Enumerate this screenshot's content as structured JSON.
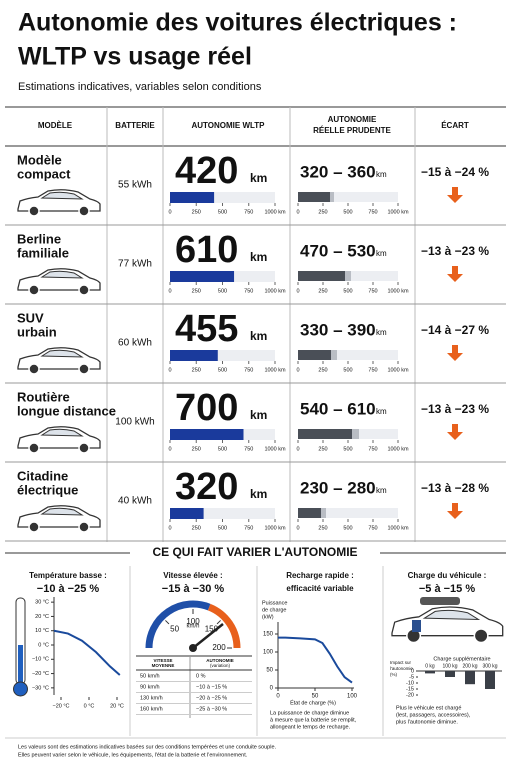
{
  "header": {
    "title": [
      "Autonomie des voitures électriques :",
      "WLTP vs usage réel"
    ],
    "subtitle": "Estimations indicatives, variables selon conditions"
  },
  "table": {
    "columns": [
      "MODÈLE",
      "BATTERIE",
      "AUTONOMIE WLTP",
      [
        "AUTONOMIE",
        "RÉELLE PRUDENTE"
      ],
      "ÉCART"
    ],
    "unit": "km",
    "axis": {
      "lim": [
        0,
        1000
      ],
      "ticks": [
        0,
        250,
        500,
        750,
        {
          "value": 1000,
          "label": "1000 km"
        }
      ]
    },
    "rows": [
      {
        "model": [
          "Modèle",
          "compact"
        ],
        "battery": "55 kWh",
        "wltp": 420,
        "real": "320 – 360",
        "real_min": 320,
        "real_max": 360,
        "gap": "−15 à −24 %"
      },
      {
        "model": [
          "Berline",
          "familiale"
        ],
        "battery": "77 kWh",
        "wltp": 610,
        "real": "470 – 530",
        "real_min": 470,
        "real_max": 530,
        "gap": "−13 à −23 %"
      },
      {
        "model": [
          "SUV",
          "urbain"
        ],
        "battery": "60 kWh",
        "wltp": 455,
        "real": "330 – 390",
        "real_min": 330,
        "real_max": 390,
        "gap": "−14 à −27 %"
      },
      {
        "model": [
          "Routière",
          "longue distance"
        ],
        "battery": "100 kWh",
        "wltp": 700,
        "real": "540 – 610",
        "real_min": 540,
        "real_max": 610,
        "gap": "−13 à −23 %"
      },
      {
        "model": [
          "Citadine",
          "électrique"
        ],
        "battery": "40 kWh",
        "wltp": 320,
        "real": "230 – 280",
        "real_min": 230,
        "real_max": 280,
        "gap": "−13 à −28 %"
      }
    ]
  },
  "factors": {
    "title": "CE QUI FAIT VARIER L'AUTONOMIE",
    "temperature": {
      "title": "Température basse :",
      "value": "−10 à −25 %",
      "ylim": [
        -35,
        35
      ],
      "yticks": [
        {
          "value": 30,
          "label": "30 °C"
        },
        {
          "value": 20,
          "label": "20 °C"
        },
        {
          "value": 10,
          "label": "10 °C"
        },
        {
          "value": 0,
          "label": "0 °C"
        },
        {
          "value": -10,
          "label": "−10 °C"
        },
        {
          "value": -20,
          "label": "−20 °C"
        },
        {
          "value": -30,
          "label": "−30 °C"
        }
      ],
      "xlim": [
        -25,
        25
      ],
      "xticks": [
        {
          "value": -20,
          "label": "−20 °C"
        },
        {
          "value": 0,
          "label": "0 °C"
        },
        {
          "value": 20,
          "label": "20 °C"
        }
      ],
      "x": [
        -25,
        -15,
        -5,
        5,
        15,
        22
      ],
      "values": [
        10,
        8,
        3,
        -5,
        -15,
        -21
      ],
      "color": "#1a4a9c"
    },
    "speed": {
      "title": "Vitesse élevée :",
      "value": "−15 à −30 %",
      "gauge": {
        "lim": [
          0,
          200
        ],
        "ticks": [
          50,
          100,
          150,
          200
        ],
        "unit": "km/h"
      },
      "columns": [
        "VITESSE",
        "MOYENNE",
        "AUTONOMIE",
        "(variation)"
      ],
      "rows": [
        [
          "50 km/h",
          "0 %"
        ],
        [
          "90 km/h",
          "−10 à −15 %"
        ],
        [
          "130 km/h",
          "−20 à −25 %"
        ],
        [
          "160 km/h",
          "−25 à −30 %"
        ]
      ]
    },
    "charging": {
      "title": "Recharge rapide :",
      "value": "efficacité variable",
      "ylabel": [
        "Puissance",
        "de charge",
        "(kW)"
      ],
      "xlabel": "État de charge (%)",
      "ylim": [
        0,
        175
      ],
      "yticks": [
        0,
        50,
        100,
        150
      ],
      "xlim": [
        0,
        100
      ],
      "xticks": [
        0,
        50,
        100
      ],
      "x": [
        0,
        10,
        30,
        50,
        60,
        70,
        80,
        90,
        100
      ],
      "values": [
        140,
        140,
        138,
        135,
        125,
        95,
        60,
        30,
        15
      ],
      "color": "#1a4a9c",
      "note": [
        "La puissance de charge diminue",
        "à mesure que la batterie se remplit,",
        "allongeant le temps de recharge."
      ]
    },
    "load": {
      "title": "Charge du véhicule :",
      "value": "−5 à −15 %",
      "chart_title": "Charge supplémentaire",
      "ylabel": [
        "Impact sur",
        "l'autonomie",
        "(%)"
      ],
      "categories": [
        "0 kg",
        "100 kg",
        "200 kg",
        "300 kg"
      ],
      "values": [
        -2,
        -5,
        -11,
        -15
      ],
      "ylim": [
        -20,
        0
      ],
      "yticks": [
        0,
        -5,
        -10,
        -15,
        -20
      ],
      "color": "#3a3f47",
      "note": [
        "Plus le véhicule est chargé",
        "(lest, passagers, accessoires),",
        "plus l'autonomie diminue."
      ]
    }
  },
  "footer": [
    "Les valeurs sont des estimations indicatives basées sur des conditions tempérées et une conduite souple.",
    "Elles peuvent varier selon le véhicule, les équipements, l'état de la batterie et l'environnement."
  ]
}
